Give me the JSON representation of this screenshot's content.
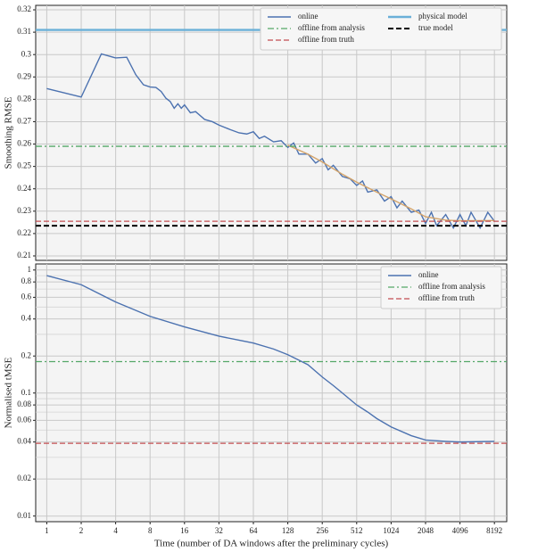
{
  "chart_data": [
    {
      "type": "line",
      "ylabel": "Smoothing RMSE",
      "xlog": 2,
      "xlim": [
        0.8,
        10500
      ],
      "xticks": [
        1,
        2,
        4,
        8,
        16,
        32,
        64,
        128,
        256,
        512,
        1024,
        2048,
        4096,
        8192
      ],
      "ylim": [
        0.208,
        0.322
      ],
      "yticks": [
        0.21,
        0.22,
        0.23,
        0.24,
        0.25,
        0.26,
        0.27,
        0.28,
        0.29,
        0.3,
        0.31,
        0.32
      ],
      "grid": true,
      "legend": "upper right",
      "legend_columns": 2,
      "series": [
        {
          "name": "online",
          "color": "#4c72b0",
          "x": [
            1,
            2,
            3,
            4,
            5,
            6,
            7,
            8,
            9,
            10,
            11,
            12,
            13,
            14,
            15,
            16,
            18,
            20,
            24,
            28,
            32,
            40,
            48,
            56,
            64,
            72,
            80,
            96,
            112,
            128,
            144,
            160,
            192,
            224,
            256,
            288,
            320,
            384,
            448,
            512,
            576,
            640,
            768,
            896,
            1024,
            1152,
            1280,
            1536,
            1792,
            2048,
            2304,
            2560,
            3072,
            3584,
            4096,
            4608,
            5120,
            6144,
            7168,
            8192
          ],
          "values": [
            0.2848,
            0.281,
            0.3003,
            0.2985,
            0.2988,
            0.291,
            0.2865,
            0.2855,
            0.2853,
            0.2835,
            0.2805,
            0.279,
            0.276,
            0.278,
            0.276,
            0.2775,
            0.274,
            0.2745,
            0.271,
            0.27,
            0.2685,
            0.2665,
            0.265,
            0.2645,
            0.2655,
            0.2625,
            0.2635,
            0.261,
            0.2615,
            0.2585,
            0.2605,
            0.2555,
            0.2555,
            0.2515,
            0.2535,
            0.2485,
            0.2505,
            0.2455,
            0.2445,
            0.2415,
            0.2435,
            0.2385,
            0.2395,
            0.2345,
            0.2365,
            0.2315,
            0.2345,
            0.2295,
            0.2305,
            0.2245,
            0.2295,
            0.2235,
            0.2285,
            0.2225,
            0.2285,
            0.2235,
            0.2295,
            0.2225,
            0.2295,
            0.2255
          ]
        },
        {
          "color": "#d4a46a",
          "x": [
            128,
            192,
            256,
            384,
            512,
            768,
            1024,
            1536,
            2048,
            3072,
            4096,
            8192
          ],
          "values": [
            0.2595,
            0.2555,
            0.252,
            0.2465,
            0.243,
            0.2385,
            0.2355,
            0.231,
            0.2275,
            0.226,
            0.2257,
            0.2258
          ]
        }
      ],
      "hlines": [
        {
          "name": "offline from analysis",
          "color": "#55a868",
          "dash": "dashdot",
          "value": 0.259
        },
        {
          "name": "offline from truth",
          "color": "#c44e52",
          "dash": "dashed",
          "value": 0.2255
        },
        {
          "name": "physical model",
          "color": "#6ab0d8",
          "dash": "solid",
          "value": 0.311
        },
        {
          "name": "true model",
          "color": "#000000",
          "dash": "dashed",
          "value": 0.2235
        }
      ]
    },
    {
      "type": "line",
      "ylabel": "Normalised tMSE",
      "xlabel": "Time (number of DA windows after the preliminary cycles)",
      "xlog": 2,
      "xlim": [
        0.8,
        10500
      ],
      "xticks": [
        1,
        2,
        4,
        8,
        16,
        32,
        64,
        128,
        256,
        512,
        1024,
        2048,
        4096,
        8192
      ],
      "ylog": 10,
      "ylim": [
        0.009,
        1.12
      ],
      "yticks": [
        0.01,
        0.02,
        0.04,
        0.06,
        0.08,
        0.1,
        0.2,
        0.4,
        0.6,
        0.8,
        1
      ],
      "yminorticks": [
        0.03,
        0.05,
        0.07,
        0.09,
        0.3,
        0.5,
        0.7,
        0.9
      ],
      "grid": true,
      "legend": "upper right",
      "legend_columns": 1,
      "series": [
        {
          "name": "online",
          "color": "#4c72b0",
          "x": [
            1,
            2,
            4,
            8,
            16,
            32,
            64,
            96,
            128,
            160,
            192,
            256,
            320,
            384,
            512,
            640,
            768,
            1024,
            1536,
            2048,
            3072,
            4096,
            8192
          ],
          "values": [
            0.9,
            0.76,
            0.55,
            0.42,
            0.345,
            0.29,
            0.255,
            0.228,
            0.205,
            0.185,
            0.17,
            0.135,
            0.115,
            0.1,
            0.08,
            0.07,
            0.062,
            0.053,
            0.045,
            0.0415,
            0.0405,
            0.04,
            0.0405
          ]
        }
      ],
      "hlines": [
        {
          "name": "offline from analysis",
          "color": "#55a868",
          "dash": "dashdot",
          "value": 0.18
        },
        {
          "name": "offline from truth",
          "color": "#c44e52",
          "dash": "dashed",
          "value": 0.039
        }
      ]
    }
  ]
}
